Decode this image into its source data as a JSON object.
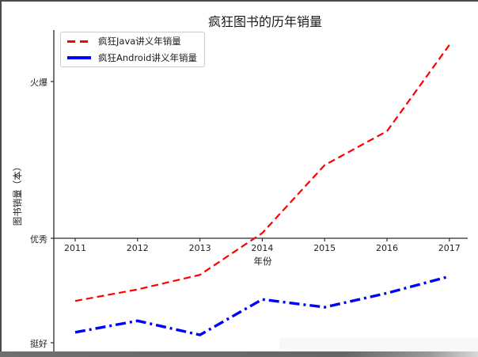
{
  "window": {
    "background": "#ffffff",
    "border_color": "#4a4a4a"
  },
  "chart_data": {
    "type": "line",
    "title": "疯狂图书的历年销量",
    "xlabel": "年份",
    "ylabel": "图书销量（本）",
    "x": [
      2011,
      2012,
      2013,
      2014,
      2015,
      2016,
      2017
    ],
    "series": [
      {
        "name": "疯狂Java讲义年销量",
        "color": "#ff0000",
        "linestyle": "dashed",
        "linewidth": 2.2,
        "values": [
          58000,
          60200,
          63000,
          71000,
          84000,
          90500,
          107000
        ]
      },
      {
        "name": "疯狂Android讲义年销量",
        "color": "#0000ff",
        "linestyle": "dashdot",
        "linewidth": 3.4,
        "values": [
          52000,
          54200,
          51500,
          58300,
          56800,
          59500,
          62700
        ]
      }
    ],
    "yticks": [
      {
        "value": 50000,
        "label": "挺好"
      },
      {
        "value": 70000,
        "label": "优秀"
      },
      {
        "value": 100000,
        "label": "火爆"
      }
    ],
    "x_axis_at_value": 70000,
    "xlim": [
      2010.65,
      2017.3
    ],
    "grid": false,
    "legend_position": "upper left",
    "axis_color": "#2b2b2b"
  }
}
